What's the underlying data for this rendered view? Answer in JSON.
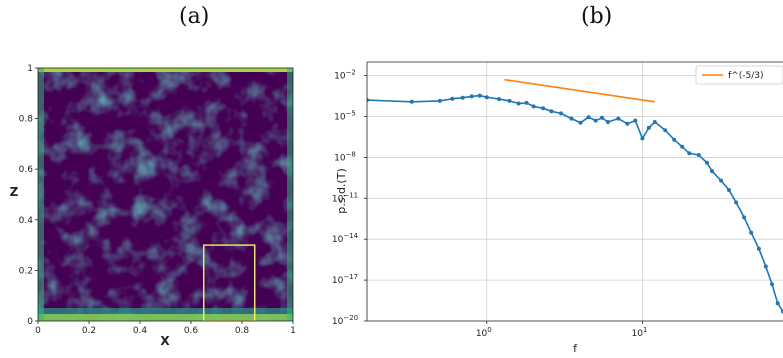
{
  "panels": {
    "a": {
      "label": "(a)"
    },
    "b": {
      "label": "(b)"
    }
  },
  "chart_data": [
    {
      "type": "heatmap",
      "panel": "(a)",
      "xlabel": "X",
      "ylabel": "Z",
      "xlim": [
        0,
        1
      ],
      "ylim": [
        0,
        1
      ],
      "xticks": [
        "0",
        "0.2",
        "0.4",
        "0.6",
        "0.8",
        "1"
      ],
      "yticks": [
        "0",
        "0.2",
        "0.4",
        "0.6",
        "0.8",
        "1"
      ],
      "colormap": "viridis",
      "background_color": "#440154",
      "highlight_box": {
        "x": [
          0.65,
          0.85
        ],
        "z": [
          0.0,
          0.3
        ],
        "color": "#f2f26a"
      }
    },
    {
      "type": "line",
      "panel": "(b)",
      "xlabel": "f",
      "ylabel": "p.s.d.(T)",
      "xscale": "log",
      "yscale": "log",
      "xlim": [
        0.17,
        80
      ],
      "ylim": [
        1e-20,
        0.1
      ],
      "xticks": [
        {
          "value": 1,
          "base": "10",
          "exp": "0"
        },
        {
          "value": 10,
          "base": "10",
          "exp": "1"
        }
      ],
      "yticks": [
        {
          "value": 0.01,
          "base": "10",
          "exp": "−2"
        },
        {
          "value": 1e-05,
          "base": "10",
          "exp": "−5"
        },
        {
          "value": 1e-08,
          "base": "10",
          "exp": "−8"
        },
        {
          "value": 1e-11,
          "base": "10",
          "exp": "−11"
        },
        {
          "value": 1e-14,
          "base": "10",
          "exp": "−14"
        },
        {
          "value": 1e-17,
          "base": "10",
          "exp": "−17"
        },
        {
          "value": 1e-20,
          "base": "10",
          "exp": "−20"
        }
      ],
      "grid": true,
      "legend": {
        "position": "top-right",
        "entries": [
          "f^(-5/3)"
        ]
      },
      "series": [
        {
          "name": "",
          "color": "#1f77b4",
          "marker": "dot",
          "points": [
            [
              0.17,
              0.00016
            ],
            [
              0.33,
              0.00012
            ],
            [
              0.5,
              0.00014
            ],
            [
              0.6,
              0.0002
            ],
            [
              0.7,
              0.00024
            ],
            [
              0.8,
              0.0003
            ],
            [
              0.9,
              0.00034
            ],
            [
              1.0,
              0.00026
            ],
            [
              1.2,
              0.00019
            ],
            [
              1.4,
              0.00014
            ],
            [
              1.6,
              9e-05
            ],
            [
              1.8,
              0.0001
            ],
            [
              2.0,
              5.5e-05
            ],
            [
              2.3,
              4e-05
            ],
            [
              2.6,
              2.4e-05
            ],
            [
              3.0,
              1.7e-05
            ],
            [
              3.5,
              7e-06
            ],
            [
              4.0,
              3.5e-06
            ],
            [
              4.5,
              9e-06
            ],
            [
              5.0,
              5e-06
            ],
            [
              5.5,
              8e-06
            ],
            [
              6.0,
              4e-06
            ],
            [
              7.0,
              7e-06
            ],
            [
              8.0,
              3e-06
            ],
            [
              9.0,
              5e-06
            ],
            [
              10.0,
              2.5e-07
            ],
            [
              11.0,
              1.5e-06
            ],
            [
              12.0,
              4e-06
            ],
            [
              14.0,
              1e-06
            ],
            [
              16.0,
              2e-07
            ],
            [
              18.0,
              6e-08
            ],
            [
              20.0,
              2e-08
            ],
            [
              23.0,
              1.5e-08
            ],
            [
              26.0,
              4e-09
            ],
            [
              28.0,
              1e-09
            ],
            [
              32.0,
              2e-10
            ],
            [
              36.0,
              4e-11
            ],
            [
              40.0,
              5e-12
            ],
            [
              45.0,
              4e-13
            ],
            [
              50.0,
              3e-14
            ],
            [
              56.0,
              2e-15
            ],
            [
              62.0,
              1e-16
            ],
            [
              68.0,
              5e-18
            ],
            [
              74.0,
              2e-19
            ],
            [
              80.0,
              5e-20
            ]
          ]
        },
        {
          "name": "f^(-5/3)",
          "color": "#ff7f0e",
          "points": [
            [
              1.3,
              0.005
            ],
            [
              12.0,
              0.00012
            ]
          ]
        }
      ]
    }
  ]
}
